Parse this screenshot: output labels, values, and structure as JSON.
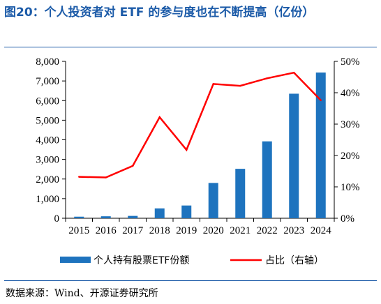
{
  "title": "图20：个人投资者对 ETF 的参与度也在不断提高（亿份）",
  "source": "数据来源：Wind、开源证券研究所",
  "chart_data": {
    "type": "bar+line",
    "categories": [
      "2015",
      "2016",
      "2017",
      "2018",
      "2019",
      "2020",
      "2021",
      "2022",
      "2023",
      "2024"
    ],
    "series": [
      {
        "name": "个人持有股票ETF份额",
        "type": "bar",
        "axis": "left",
        "color": "#1e73be",
        "values": [
          80,
          100,
          120,
          500,
          650,
          1800,
          2520,
          3920,
          6350,
          7430
        ]
      },
      {
        "name": "占比（右轴）",
        "type": "line",
        "axis": "right",
        "color": "#ff0000",
        "values": [
          13.2,
          13.0,
          16.7,
          32.2,
          21.8,
          42.8,
          42.2,
          44.6,
          46.4,
          37.6
        ]
      }
    ],
    "y_left": {
      "ylim": [
        0,
        8000
      ],
      "ticks": [
        "0",
        "1,000",
        "2,000",
        "3,000",
        "4,000",
        "5,000",
        "6,000",
        "7,000",
        "8,000"
      ]
    },
    "y_right": {
      "ylim": [
        0,
        50
      ],
      "ticks": [
        "0%",
        "10%",
        "20%",
        "30%",
        "40%",
        "50%"
      ]
    },
    "grid": false,
    "legend_position": "bottom"
  }
}
